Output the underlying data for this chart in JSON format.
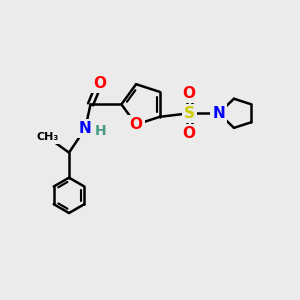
{
  "bg_color": "#ebebeb",
  "bond_color": "#000000",
  "bond_width": 1.8,
  "atom_colors": {
    "O": "#ff0000",
    "N": "#0000ff",
    "S": "#cccc00",
    "H": "#4a9a8a"
  },
  "font_size_atom": 11,
  "font_size_H": 10,
  "figsize": [
    3.0,
    3.0
  ],
  "dpi": 100,
  "xlim": [
    0,
    10
  ],
  "ylim": [
    0,
    10
  ]
}
